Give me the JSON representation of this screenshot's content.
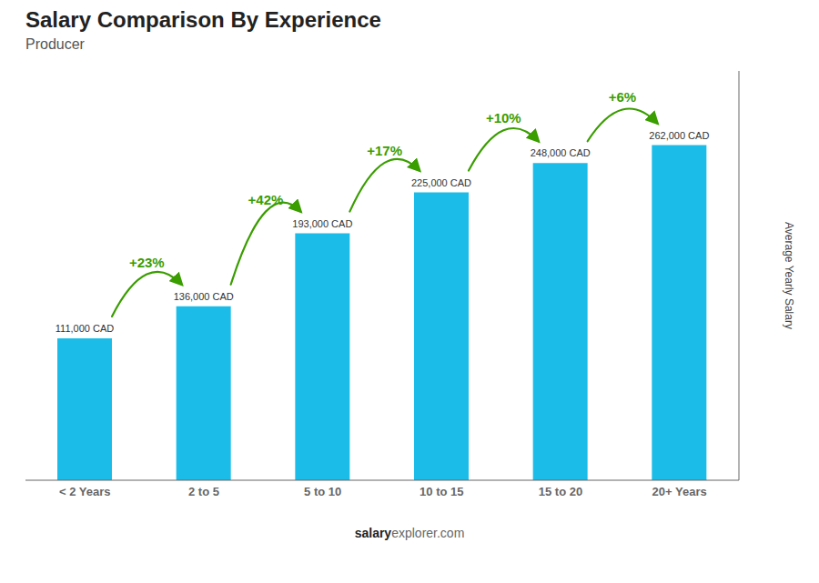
{
  "chart_data": {
    "type": "bar",
    "title": "Salary Comparison By Experience",
    "subtitle": "Producer",
    "categories": [
      "< 2 Years",
      "2 to 5",
      "5 to 10",
      "10 to 15",
      "15 to 20",
      "20+ Years"
    ],
    "values": [
      111000,
      136000,
      193000,
      225000,
      248000,
      262000
    ],
    "value_labels": [
      "111,000 CAD",
      "136,000 CAD",
      "193,000 CAD",
      "225,000 CAD",
      "248,000 CAD",
      "262,000 CAD"
    ],
    "data_labels": true,
    "color": "#1bbde8",
    "ylabel": "Average Yearly Salary",
    "ylim": [
      0,
      320000
    ],
    "tick_labels": "x",
    "grid": false,
    "annotations": [
      {
        "text": "+23%",
        "from": "< 2 Years",
        "to": "2 to 5"
      },
      {
        "text": "+42%",
        "from": "2 to 5",
        "to": "5 to 10"
      },
      {
        "text": "+17%",
        "from": "5 to 10",
        "to": "10 to 15"
      },
      {
        "text": "+10%",
        "from": "10 to 15",
        "to": "15 to 20"
      },
      {
        "text": "+6%",
        "from": "15 to 20",
        "to": "20+ Years"
      }
    ],
    "watermark": [
      "salary",
      "explorer.com"
    ]
  }
}
